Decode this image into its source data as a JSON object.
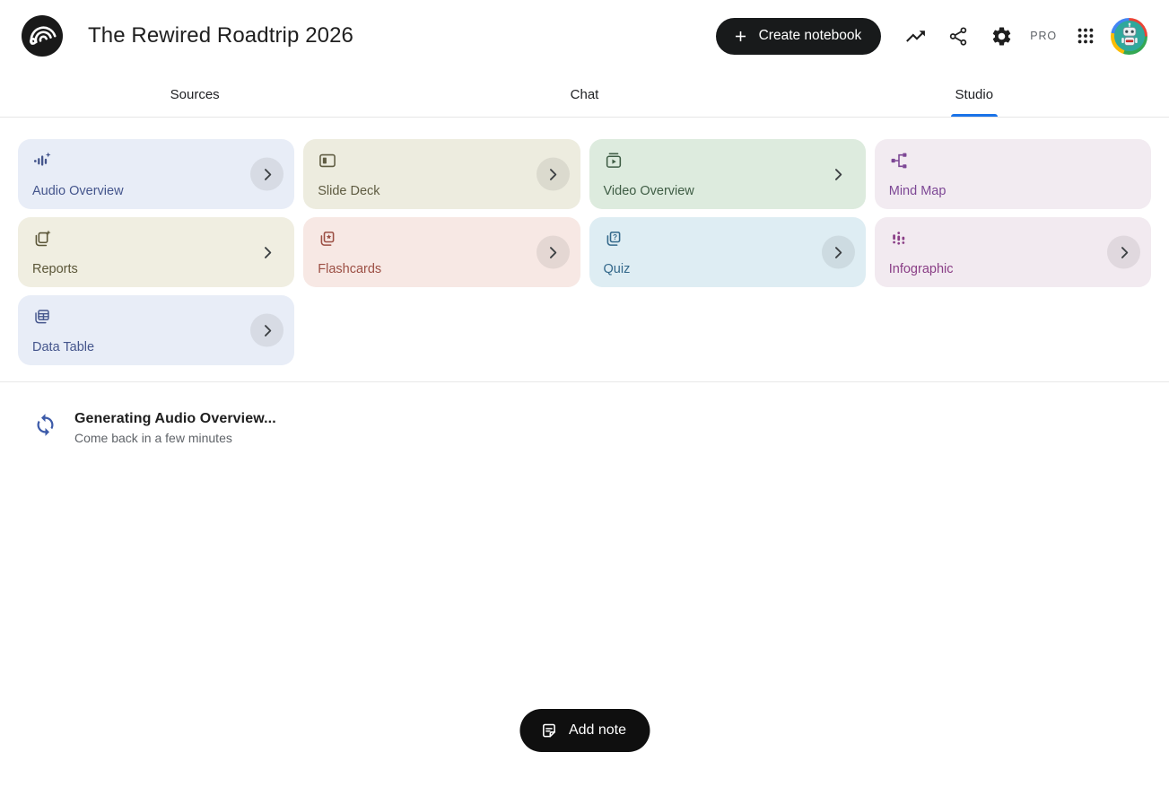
{
  "header": {
    "title": "The Rewired Roadtrip 2026",
    "create_notebook_label": "Create notebook",
    "pro_label": "PRO",
    "icons": {
      "logo": "notebooklm-logo",
      "analytics": "trending-up-icon",
      "share": "share-icon",
      "settings": "gear-icon",
      "apps": "apps-grid-icon",
      "avatar": "robot-avatar"
    }
  },
  "tabs": [
    {
      "label": "Sources",
      "active": false
    },
    {
      "label": "Chat",
      "active": false
    },
    {
      "label": "Studio",
      "active": true
    }
  ],
  "studio": {
    "cards": [
      {
        "label": "Audio Overview",
        "icon": "audio-waveform-icon",
        "bg": "#E8EDF7",
        "fg": "#44558C",
        "chevron": "circle"
      },
      {
        "label": "Slide Deck",
        "icon": "slide-deck-icon",
        "bg": "#EDECDF",
        "fg": "#5F5C42",
        "chevron": "circle"
      },
      {
        "label": "Video Overview",
        "icon": "video-icon",
        "bg": "#DDEBDE",
        "fg": "#3F5D45",
        "chevron": "plain"
      },
      {
        "label": "Mind Map",
        "icon": "mind-map-icon",
        "bg": "#F2EBF1",
        "fg": "#7D4795",
        "chevron": "none"
      },
      {
        "label": "Reports",
        "icon": "reports-icon",
        "bg": "#F0EEE1",
        "fg": "#5B5638",
        "chevron": "plain"
      },
      {
        "label": "Flashcards",
        "icon": "flashcards-icon",
        "bg": "#F7E8E4",
        "fg": "#9C4F44",
        "chevron": "circle"
      },
      {
        "label": "Quiz",
        "icon": "quiz-icon",
        "bg": "#DEEDF3",
        "fg": "#33688A",
        "chevron": "circle"
      },
      {
        "label": "Infographic",
        "icon": "infographic-icon",
        "bg": "#F2EAF0",
        "fg": "#8A3E86",
        "chevron": "circle"
      },
      {
        "label": "Data Table",
        "icon": "data-table-icon",
        "bg": "#E8EDF7",
        "fg": "#44558C",
        "chevron": "circle"
      }
    ],
    "status": {
      "title": "Generating Audio Overview...",
      "subtitle": "Come back in a few minutes",
      "icon": "sync-icon"
    },
    "add_note_label": "Add note"
  },
  "colors": {
    "tab_active_underline": "#1A73E8",
    "button_black": "#181A1B",
    "spinner_blue": "#3D5BA9",
    "divider": "#E8E8E8"
  }
}
